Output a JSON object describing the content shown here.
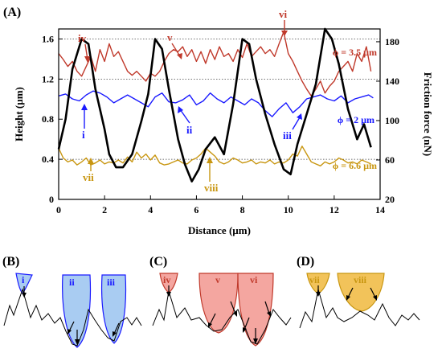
{
  "panel_labels": {
    "a": "(A)",
    "b": "(B)",
    "c": "(C)",
    "d": "(D)"
  },
  "colors": {
    "height": "#000000",
    "blue": "#1a1aff",
    "red": "#c0392b",
    "gold": "#c89610",
    "blue_fill": "#a9ccf2",
    "red_fill": "#f4a6a0",
    "gold_fill": "#f2c35a",
    "grid": "#444444"
  },
  "annotations": {
    "i": "i",
    "ii": "ii",
    "iii": "iii",
    "iv": "iv",
    "v": "v",
    "vi": "vi",
    "vii": "vii",
    "viii": "viii"
  },
  "chart_data": {
    "type": "line",
    "xlabel": "Distance (µm)",
    "ylabel": "Height (µm)",
    "y2label": "Friction force (nN)",
    "xlim": [
      0,
      14
    ],
    "ylim": [
      0,
      1.7
    ],
    "y2lim": [
      20,
      193
    ],
    "xticks": [
      "0",
      "2",
      "4",
      "6",
      "8",
      "10",
      "12",
      "14"
    ],
    "yticks": [
      "0",
      "0.4",
      "0.8",
      "1.2",
      "1.6"
    ],
    "y2ticks": [
      "20",
      "60",
      "100",
      "140",
      "180"
    ],
    "gridlines_y": [
      0.4,
      1.2,
      1.6
    ],
    "series": [
      {
        "name": "Height",
        "axis": "left",
        "x": [
          0,
          0.3,
          0.6,
          1.0,
          1.3,
          1.6,
          2.0,
          2.2,
          2.5,
          2.8,
          3.2,
          3.6,
          3.9,
          4.2,
          4.5,
          4.8,
          5.2,
          5.5,
          5.8,
          6.1,
          6.4,
          6.8,
          7.2,
          7.6,
          8.0,
          8.3,
          8.6,
          9.0,
          9.4,
          9.8,
          10.1,
          10.4,
          10.8,
          11.2,
          11.6,
          11.9,
          12.2,
          12.6,
          13.0,
          13.3,
          13.6
        ],
        "y": [
          0.5,
          0.8,
          1.3,
          1.6,
          1.55,
          1.1,
          0.7,
          0.45,
          0.32,
          0.32,
          0.45,
          0.78,
          1.05,
          1.6,
          1.5,
          1.1,
          0.6,
          0.35,
          0.18,
          0.3,
          0.5,
          0.62,
          0.45,
          0.95,
          1.6,
          1.55,
          1.2,
          0.85,
          0.55,
          0.3,
          0.25,
          0.55,
          0.85,
          1.15,
          1.7,
          1.6,
          1.35,
          0.9,
          0.6,
          0.75,
          0.52
        ]
      },
      {
        "name": "ϕ = 3.5 µm",
        "axis": "right",
        "x": [
          0,
          0.2,
          0.4,
          0.6,
          0.8,
          1.0,
          1.2,
          1.4,
          1.6,
          1.8,
          2.0,
          2.2,
          2.4,
          2.6,
          2.8,
          3.0,
          3.2,
          3.4,
          3.6,
          3.8,
          4.0,
          4.2,
          4.4,
          4.6,
          4.8,
          5.0,
          5.2,
          5.4,
          5.6,
          5.8,
          6.0,
          6.2,
          6.4,
          6.6,
          6.8,
          7.0,
          7.2,
          7.4,
          7.6,
          7.8,
          8.0,
          8.2,
          8.4,
          8.6,
          8.8,
          9.0,
          9.2,
          9.4,
          9.6,
          9.8,
          10.0,
          10.2,
          10.4,
          10.6,
          10.8,
          11.0,
          11.2,
          11.4,
          11.6,
          11.8,
          12.0,
          12.2,
          12.4,
          12.6,
          12.8,
          13.0,
          13.2,
          13.4,
          13.6
        ],
        "y": [
          168,
          162,
          155,
          160,
          150,
          145,
          155,
          165,
          150,
          172,
          160,
          178,
          165,
          170,
          160,
          150,
          146,
          150,
          145,
          140,
          148,
          145,
          150,
          160,
          168,
          172,
          170,
          175,
          165,
          172,
          160,
          170,
          158,
          172,
          162,
          175,
          165,
          168,
          160,
          172,
          164,
          178,
          165,
          170,
          175,
          168,
          172,
          165,
          178,
          190,
          168,
          160,
          150,
          140,
          132,
          125,
          132,
          140,
          128,
          135,
          140,
          150,
          155,
          160,
          150,
          168,
          160,
          175,
          150
        ]
      },
      {
        "name": "ϕ = 2 µm",
        "axis": "right",
        "x": [
          0,
          0.3,
          0.6,
          0.9,
          1.2,
          1.5,
          1.8,
          2.1,
          2.4,
          2.7,
          3.0,
          3.3,
          3.6,
          3.9,
          4.2,
          4.5,
          4.8,
          5.1,
          5.4,
          5.7,
          6.0,
          6.3,
          6.6,
          6.9,
          7.2,
          7.5,
          7.8,
          8.1,
          8.4,
          8.7,
          9.0,
          9.3,
          9.6,
          9.9,
          10.2,
          10.5,
          10.8,
          11.1,
          11.4,
          11.7,
          12.0,
          12.3,
          12.6,
          12.9,
          13.2,
          13.5,
          13.7
        ],
        "y": [
          125,
          127,
          122,
          120,
          126,
          130,
          128,
          124,
          118,
          122,
          126,
          122,
          118,
          114,
          124,
          128,
          119,
          118,
          121,
          126,
          116,
          120,
          128,
          122,
          118,
          124,
          120,
          116,
          122,
          118,
          110,
          104,
          112,
          118,
          108,
          114,
          122,
          124,
          126,
          122,
          120,
          125,
          118,
          122,
          124,
          126,
          123
        ]
      },
      {
        "name": "ϕ = 6.6 µm",
        "axis": "right",
        "x": [
          0,
          0.2,
          0.4,
          0.6,
          0.8,
          1.0,
          1.2,
          1.4,
          1.6,
          1.8,
          2.0,
          2.2,
          2.4,
          2.6,
          2.8,
          3.0,
          3.2,
          3.4,
          3.6,
          3.8,
          4.0,
          4.2,
          4.4,
          4.6,
          4.8,
          5.0,
          5.2,
          5.4,
          5.6,
          5.8,
          6.0,
          6.2,
          6.4,
          6.6,
          6.8,
          7.0,
          7.2,
          7.4,
          7.6,
          7.8,
          8.0,
          8.2,
          8.4,
          8.6,
          8.8,
          9.0,
          9.2,
          9.4,
          9.6,
          9.8,
          10.0,
          10.2,
          10.4,
          10.6,
          10.8,
          11.0,
          11.2,
          11.4,
          11.6,
          11.8,
          12.0,
          12.2,
          12.4,
          12.6,
          12.8,
          13.0,
          13.2,
          13.4,
          13.6
        ],
        "y": [
          72,
          62,
          58,
          60,
          55,
          58,
          62,
          55,
          57,
          60,
          56,
          58,
          57,
          60,
          57,
          63,
          58,
          68,
          62,
          66,
          60,
          65,
          57,
          55,
          56,
          58,
          60,
          57,
          56,
          60,
          62,
          66,
          72,
          68,
          64,
          58,
          56,
          58,
          62,
          60,
          57,
          58,
          60,
          56,
          58,
          57,
          60,
          56,
          58,
          57,
          60,
          66,
          64,
          74,
          66,
          58,
          56,
          54,
          58,
          56,
          58,
          62,
          60,
          57,
          58,
          56,
          60,
          58,
          56
        ]
      }
    ],
    "series_labels": [
      "ϕ = 3.5 µm",
      "ϕ = 2 µm",
      "ϕ = 6.6 µm"
    ]
  }
}
